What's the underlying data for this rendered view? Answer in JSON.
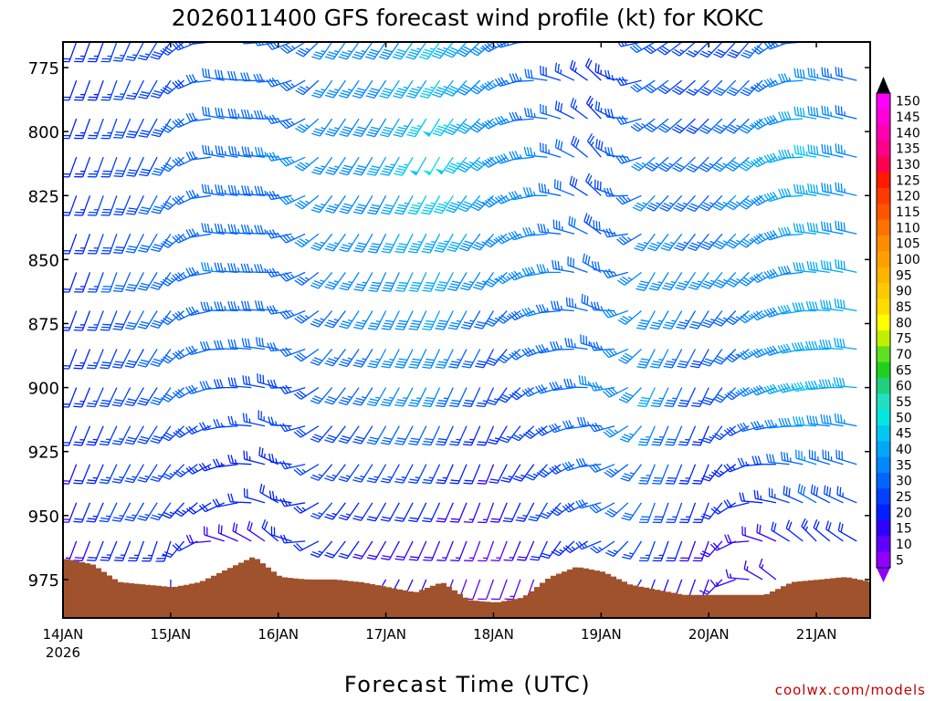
{
  "chart_data": {
    "type": "wind-barb-profile",
    "title": "2026011400 GFS forecast wind profile (kt) for KOKC",
    "xlabel": "Forecast Time (UTC)",
    "ylabel": "",
    "y_unit": "hPa",
    "ylim": [
      990,
      765
    ],
    "y_ticks": [
      {
        "value": 775,
        "label": "775"
      },
      {
        "value": 800,
        "label": "800"
      },
      {
        "value": 825,
        "label": "825"
      },
      {
        "value": 850,
        "label": "850"
      },
      {
        "value": 875,
        "label": "875"
      },
      {
        "value": 900,
        "label": "900"
      },
      {
        "value": 925,
        "label": "925"
      },
      {
        "value": 950,
        "label": "950"
      },
      {
        "value": 975,
        "label": "975"
      }
    ],
    "x_unit": "hours since 2026-01-14 00Z",
    "xlim": [
      0,
      180
    ],
    "x_ticks": [
      {
        "value": 0,
        "label": "14JAN"
      },
      {
        "value": 24,
        "label": "15JAN"
      },
      {
        "value": 48,
        "label": "16JAN"
      },
      {
        "value": 72,
        "label": "17JAN"
      },
      {
        "value": 96,
        "label": "18JAN"
      },
      {
        "value": 120,
        "label": "19JAN"
      },
      {
        "value": 144,
        "label": "20JAN"
      },
      {
        "value": 168,
        "label": "21JAN"
      }
    ],
    "x_sublabel": "2026",
    "colorbar": {
      "unit": "kt",
      "labels": [
        "150",
        "145",
        "140",
        "135",
        "130",
        "125",
        "120",
        "115",
        "110",
        "105",
        "100",
        "95",
        "90",
        "85",
        "80",
        "75",
        "70",
        "65",
        "60",
        "55",
        "50",
        "45",
        "40",
        "35",
        "30",
        "25",
        "20",
        "15",
        "10",
        "5"
      ],
      "colors": [
        "#ff00ff",
        "#ff00d8",
        "#ff00b0",
        "#ff0088",
        "#ff0050",
        "#ff1a00",
        "#ff3a00",
        "#ff5500",
        "#ff7200",
        "#ff8c00",
        "#ffa000",
        "#ffb400",
        "#ffc800",
        "#ffdc00",
        "#ffff00",
        "#c0f000",
        "#60e020",
        "#20d020",
        "#20d080",
        "#20e0c0",
        "#00e8e0",
        "#00c8f0",
        "#00a8f8",
        "#0088ff",
        "#0064ff",
        "#0040ff",
        "#0020ff",
        "#3000ff",
        "#6000ff",
        "#9000ff"
      ]
    },
    "terrain": {
      "description": "surface pressure (hPa) along forecast time",
      "x": [
        0,
        6,
        12,
        18,
        24,
        30,
        36,
        42,
        48,
        54,
        60,
        66,
        72,
        78,
        84,
        90,
        96,
        102,
        108,
        114,
        120,
        126,
        132,
        138,
        144,
        150,
        156,
        162,
        168,
        174,
        180
      ],
      "surface_hpa": [
        967,
        969,
        976,
        977,
        978,
        976,
        971,
        966,
        974,
        975,
        975,
        976,
        978,
        980,
        976,
        983,
        984,
        982,
        974,
        970,
        972,
        977,
        979,
        981,
        981,
        981,
        981,
        976,
        975,
        974,
        976
      ]
    },
    "rows_hpa": [
      765,
      780,
      795,
      810,
      825,
      840,
      855,
      870,
      885,
      900,
      915,
      930,
      945,
      960,
      975
    ],
    "times_h": [
      0,
      3,
      6,
      9,
      12,
      15,
      18,
      21,
      24,
      27,
      30,
      33,
      36,
      39,
      42,
      45,
      48,
      51,
      54,
      57,
      60,
      63,
      66,
      69,
      72,
      75,
      78,
      81,
      84,
      87,
      90,
      93,
      96,
      99,
      102,
      105,
      108,
      111,
      114,
      117,
      120,
      123,
      126,
      129,
      132,
      135,
      138,
      141,
      144,
      147,
      150,
      153,
      156,
      159,
      162,
      165,
      168,
      171,
      174,
      177
    ],
    "profile_hpa": [
      765,
      810,
      855,
      900,
      945,
      975
    ],
    "profile_times_h": [
      0,
      12,
      24,
      36,
      48,
      60,
      72,
      84,
      96,
      108,
      120,
      132,
      144,
      156,
      168,
      180
    ],
    "speed_kt": [
      [
        20,
        25,
        28,
        30,
        30,
        35,
        38,
        45,
        35,
        30,
        20,
        30,
        25,
        30,
        35,
        25
      ],
      [
        20,
        28,
        30,
        33,
        35,
        36,
        40,
        50,
        40,
        35,
        25,
        35,
        30,
        40,
        45,
        32
      ],
      [
        18,
        30,
        32,
        35,
        34,
        35,
        38,
        42,
        35,
        38,
        30,
        38,
        35,
        35,
        40,
        40
      ],
      [
        20,
        28,
        30,
        30,
        28,
        30,
        35,
        38,
        25,
        30,
        35,
        40,
        25,
        35,
        45,
        40
      ],
      [
        15,
        25,
        25,
        20,
        22,
        25,
        20,
        20,
        15,
        25,
        30,
        30,
        20,
        20,
        30,
        25
      ],
      [
        10,
        20,
        20,
        15,
        18,
        20,
        15,
        15,
        10,
        15,
        20,
        20,
        15,
        15,
        15,
        15
      ]
    ],
    "dir_deg": [
      [
        200,
        200,
        215,
        280,
        260,
        215,
        215,
        215,
        230,
        280,
        310,
        240,
        225,
        220,
        280,
        285
      ],
      [
        200,
        200,
        210,
        280,
        275,
        215,
        210,
        210,
        230,
        275,
        320,
        230,
        225,
        230,
        280,
        285
      ],
      [
        200,
        200,
        215,
        275,
        270,
        220,
        205,
        205,
        215,
        260,
        300,
        210,
        215,
        230,
        275,
        285
      ],
      [
        200,
        205,
        215,
        265,
        285,
        220,
        210,
        205,
        205,
        245,
        280,
        205,
        205,
        245,
        260,
        280
      ],
      [
        200,
        205,
        215,
        245,
        300,
        220,
        210,
        205,
        200,
        210,
        255,
        200,
        200,
        275,
        300,
        290
      ],
      [
        200,
        200,
        180,
        330,
        320,
        220,
        210,
        200,
        200,
        200,
        240,
        200,
        200,
        300,
        330,
        300
      ]
    ]
  },
  "credit": "coolwx.com/models"
}
